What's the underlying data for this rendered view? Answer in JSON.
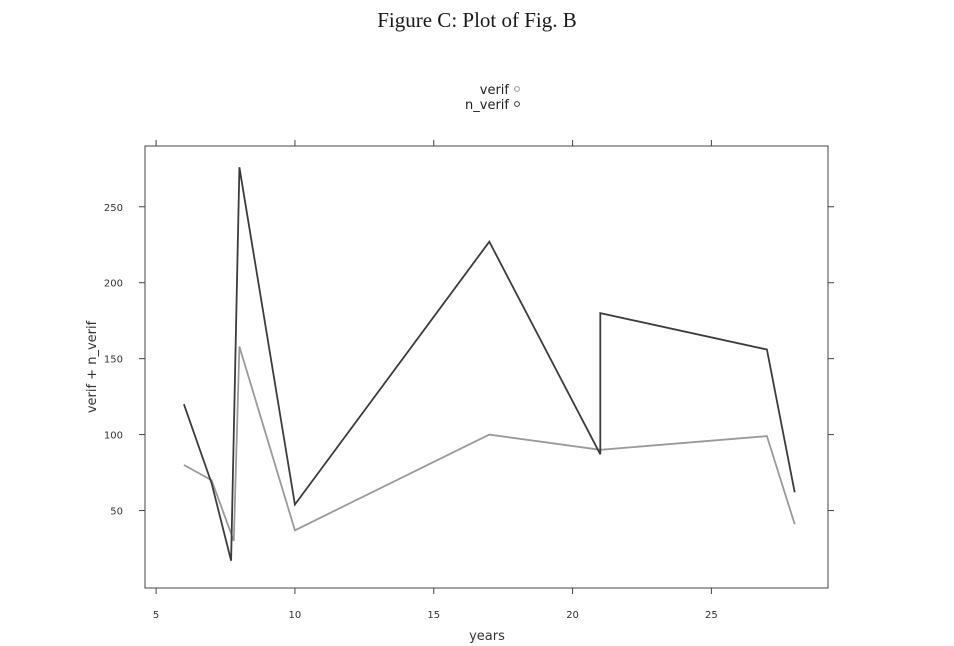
{
  "figure_title": "Figure C: Plot of Fig. B",
  "chart_data": {
    "type": "line",
    "title": "",
    "xlabel": "years",
    "ylabel": "verif + n_verif",
    "xlim": [
      4.6,
      29.2
    ],
    "ylim": [
      -1,
      290
    ],
    "x_ticks": [
      5,
      10,
      15,
      20,
      25
    ],
    "y_ticks": [
      50,
      100,
      150,
      200,
      250
    ],
    "legend_position": "top-center",
    "grid": false,
    "series": [
      {
        "name": "verif",
        "color": "#9a9a9a",
        "x": [
          6,
          7,
          7.8,
          8,
          10,
          17,
          21,
          27,
          28
        ],
        "y": [
          80,
          70,
          30,
          158,
          37,
          100,
          90,
          99,
          41
        ]
      },
      {
        "name": "n_verif",
        "color": "#3c3c3c",
        "x": [
          6,
          7,
          7.7,
          8,
          10,
          17,
          21,
          21,
          27,
          28
        ],
        "y": [
          120,
          68,
          17,
          276,
          54,
          227,
          87,
          180,
          156,
          62
        ]
      }
    ]
  }
}
